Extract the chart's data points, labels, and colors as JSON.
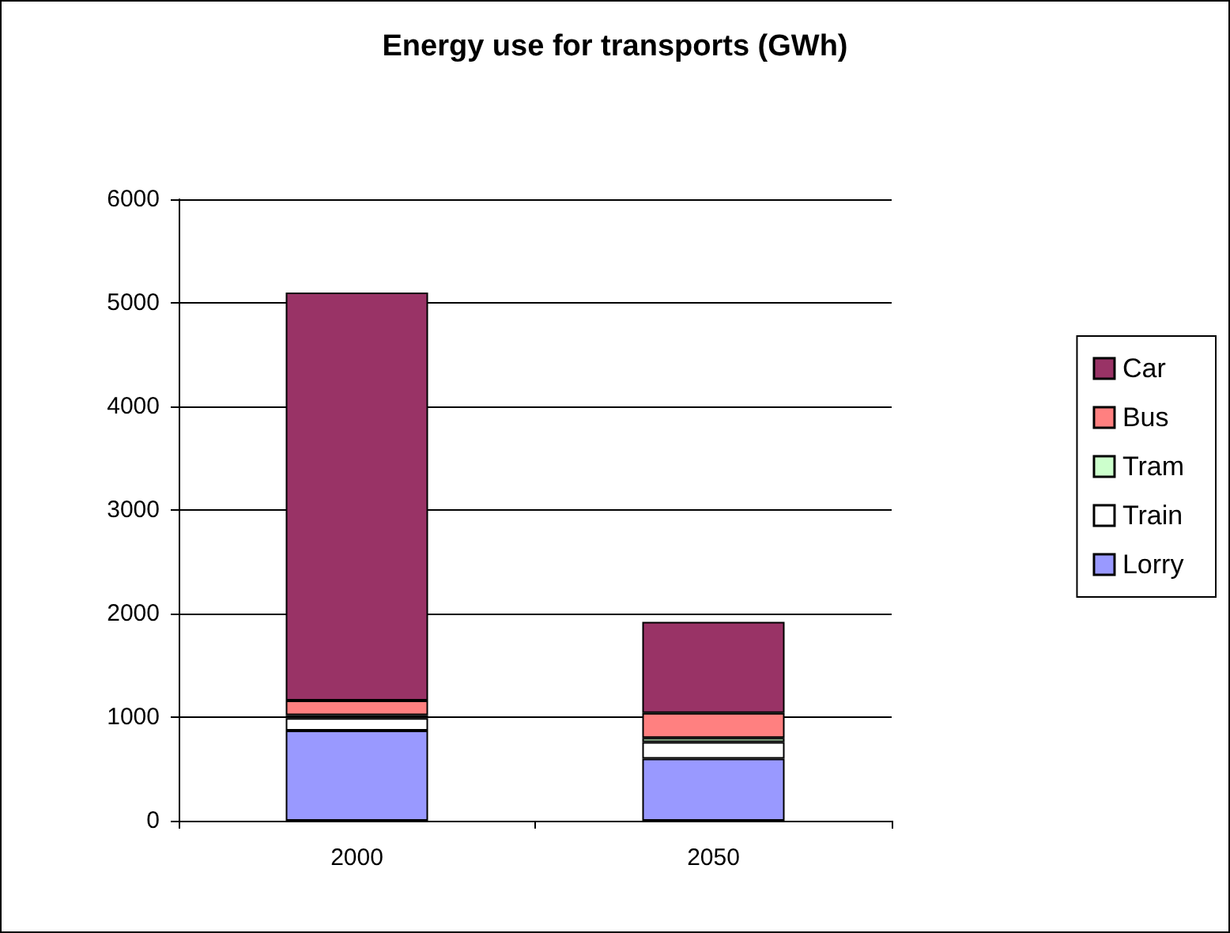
{
  "chart_data": {
    "type": "bar",
    "title": "Energy use for transports (GWh)",
    "categories": [
      "2000",
      "2050"
    ],
    "stacked": true,
    "series": [
      {
        "name": "Lorry",
        "color": "#9999ff",
        "values": [
          870,
          600
        ]
      },
      {
        "name": "Train",
        "color": "#ffffff",
        "values": [
          120,
          160
        ]
      },
      {
        "name": "Tram",
        "color": "#ccffcc",
        "values": [
          30,
          40
        ]
      },
      {
        "name": "Bus",
        "color": "#ff8080",
        "values": [
          140,
          240
        ]
      },
      {
        "name": "Car",
        "color": "#993366",
        "values": [
          3940,
          880
        ]
      }
    ],
    "ylim": [
      0,
      6000
    ],
    "yticks": [
      0,
      1000,
      2000,
      3000,
      4000,
      5000,
      6000
    ],
    "grid": "y",
    "legend": "right"
  }
}
